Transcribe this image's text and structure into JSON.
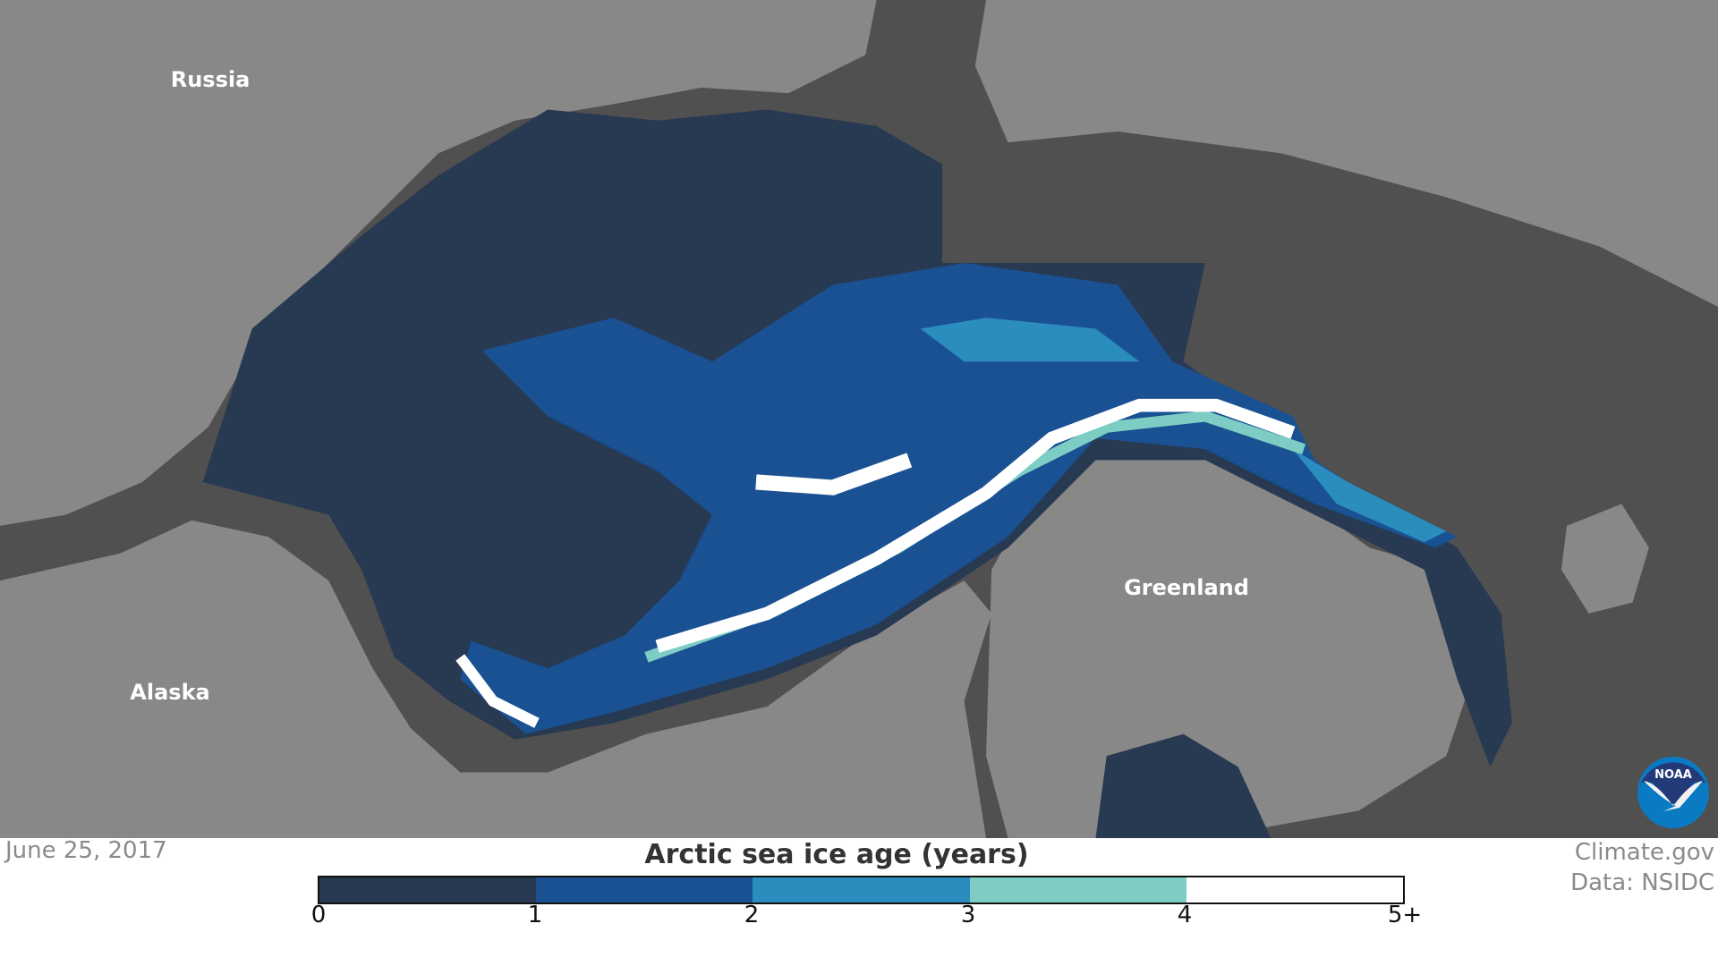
{
  "map": {
    "labels": {
      "russia": "Russia",
      "alaska": "Alaska",
      "greenland": "Greenland"
    },
    "colors": {
      "land": "#888888",
      "ocean": "#505050"
    }
  },
  "date": "June 25, 2017",
  "credit": {
    "site": "Climate.gov",
    "data": "Data: NSIDC"
  },
  "legend": {
    "title": "Arctic sea ice age (years)",
    "colors": [
      "#283a52",
      "#1a5193",
      "#2b8cbe",
      "#7ecdc4",
      "#ffffff"
    ],
    "ticks": [
      "0",
      "1",
      "2",
      "3",
      "4",
      "5+"
    ]
  },
  "logo": {
    "text": "NOAA"
  }
}
